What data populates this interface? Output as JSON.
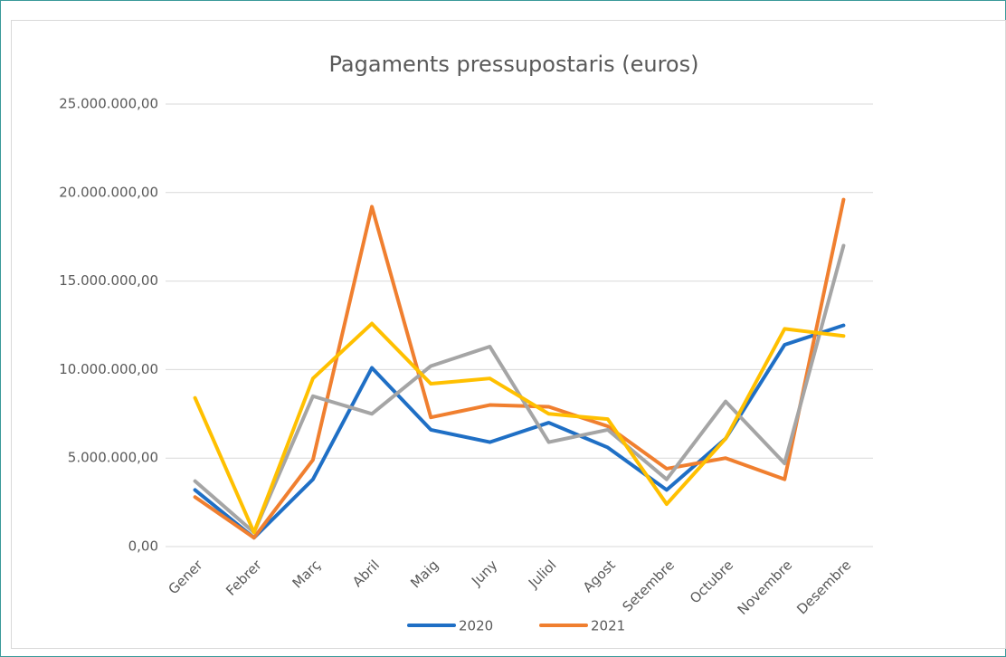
{
  "chart_data": {
    "type": "line",
    "title": "Pagaments pressupostaris (euros)",
    "categories": [
      "Gener",
      "Febrer",
      "Març",
      "Abril",
      "Maig",
      "Juny",
      "Juliol",
      "Agost",
      "Setembre",
      "Octubre",
      "Novembre",
      "Desembre"
    ],
    "series": [
      {
        "name": "2020",
        "color": "#1f6fc5",
        "values": [
          3200000,
          500000,
          3800000,
          10100000,
          6600000,
          5900000,
          7000000,
          5600000,
          3200000,
          6100000,
          11400000,
          12500000
        ]
      },
      {
        "name": "2021",
        "color": "#f07f2f",
        "values": [
          2800000,
          500000,
          4900000,
          19200000,
          7300000,
          8000000,
          7900000,
          6800000,
          4400000,
          5000000,
          3800000,
          19600000
        ]
      },
      {
        "color": "#a5a5a5",
        "values": [
          3700000,
          800000,
          8500000,
          7500000,
          10200000,
          11300000,
          5900000,
          6600000,
          3800000,
          8200000,
          4700000,
          17000000
        ]
      },
      {
        "color": "#ffc000",
        "values": [
          8400000,
          800000,
          9500000,
          12600000,
          9200000,
          9500000,
          7500000,
          7200000,
          2400000,
          6100000,
          12300000,
          11900000
        ]
      }
    ],
    "ylim": [
      0,
      25000000
    ],
    "yticks": [
      {
        "value": 0,
        "label": "0,00"
      },
      {
        "value": 5000000,
        "label": "5.000.000,00"
      },
      {
        "value": 10000000,
        "label": "10.000.000,00"
      },
      {
        "value": 15000000,
        "label": "15.000.000,00"
      },
      {
        "value": 20000000,
        "label": "20.000.000,00"
      },
      {
        "value": 25000000,
        "label": "25.000.000,00"
      }
    ],
    "grid": true,
    "legend": "bottom"
  }
}
